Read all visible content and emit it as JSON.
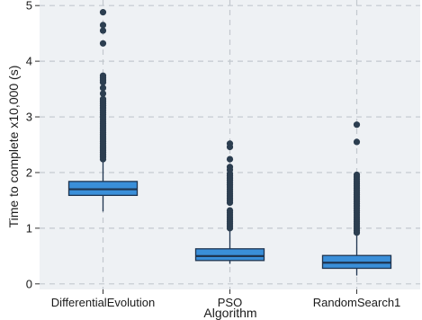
{
  "chart_data": {
    "type": "box",
    "xlabel": "Algorithm",
    "ylabel": "Time to complete x10,000 (s)",
    "ylim": [
      -0.1,
      5.1
    ],
    "yticks": [
      0,
      1,
      2,
      3,
      4,
      5
    ],
    "grid": true,
    "colors": {
      "panel": "#eef1f4",
      "grid": "#c2c8ce",
      "box_fill": "#3a8fd9",
      "box_stroke": "#1f3550",
      "outlier": "#2c3e50"
    },
    "series": [
      {
        "category": "DifferentialEvolution",
        "whisker_low": 1.3,
        "q1": 1.59,
        "median": 1.7,
        "q3": 1.84,
        "whisker_high": 2.2,
        "outliers": [
          2.24,
          2.28,
          2.32,
          2.36,
          2.4,
          2.44,
          2.48,
          2.52,
          2.56,
          2.6,
          2.64,
          2.68,
          2.72,
          2.76,
          2.8,
          2.84,
          2.88,
          2.92,
          2.96,
          3.0,
          3.04,
          3.08,
          3.12,
          3.16,
          3.2,
          3.24,
          3.28,
          3.32,
          3.42,
          3.52,
          3.62,
          3.66,
          3.7,
          3.74,
          4.32,
          4.55,
          4.65,
          4.88
        ]
      },
      {
        "category": "PSO",
        "whisker_low": 0.36,
        "q1": 0.42,
        "median": 0.5,
        "q3": 0.63,
        "whisker_high": 0.96,
        "outliers": [
          1.0,
          1.04,
          1.08,
          1.12,
          1.16,
          1.2,
          1.24,
          1.28,
          1.32,
          1.46,
          1.5,
          1.54,
          1.58,
          1.62,
          1.66,
          1.7,
          1.74,
          1.78,
          1.82,
          1.86,
          1.9,
          1.94,
          1.98,
          2.05,
          2.1,
          2.24,
          2.46,
          2.52
        ]
      },
      {
        "category": "RandomSearch1",
        "whisker_low": 0.15,
        "q1": 0.28,
        "median": 0.38,
        "q3": 0.51,
        "whisker_high": 0.88,
        "outliers": [
          0.92,
          0.96,
          1.0,
          1.04,
          1.08,
          1.12,
          1.16,
          1.2,
          1.24,
          1.28,
          1.32,
          1.36,
          1.4,
          1.44,
          1.48,
          1.52,
          1.56,
          1.6,
          1.64,
          1.68,
          1.72,
          1.76,
          1.8,
          1.84,
          1.88,
          1.92,
          1.96,
          2.55,
          2.86
        ]
      }
    ]
  }
}
